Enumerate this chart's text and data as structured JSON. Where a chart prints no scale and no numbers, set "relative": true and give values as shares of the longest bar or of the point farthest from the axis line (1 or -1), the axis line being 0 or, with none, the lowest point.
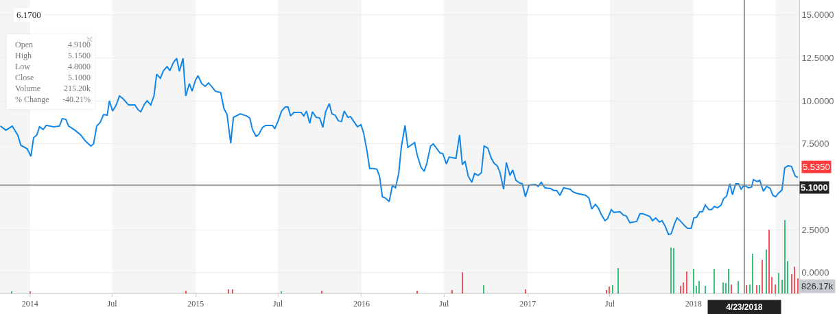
{
  "chart_data": [
    {
      "type": "line",
      "x": [
        "2013-10-28",
        "2013-11-09",
        "2013-11-23",
        "2013-12-05",
        "2013-12-12",
        "2013-12-26",
        "2014-01-03",
        "2014-01-09",
        "2014-01-16",
        "2014-01-22",
        "2014-01-30",
        "2014-02-06",
        "2014-02-22",
        "2014-03-07",
        "2014-03-13",
        "2014-03-21",
        "2014-03-27",
        "2014-04-10",
        "2014-04-23",
        "2014-05-02",
        "2014-05-15",
        "2014-05-21",
        "2014-05-28",
        "2014-06-05",
        "2014-06-12",
        "2014-06-20",
        "2014-06-25",
        "2014-07-02",
        "2014-07-10",
        "2014-07-17",
        "2014-07-25",
        "2014-08-06",
        "2014-08-20",
        "2014-08-27",
        "2014-09-02",
        "2014-09-10",
        "2014-09-16",
        "2014-09-24",
        "2014-10-01",
        "2014-10-07",
        "2014-10-15",
        "2014-10-22",
        "2014-10-30",
        "2014-11-05",
        "2014-11-13",
        "2014-11-20",
        "2014-11-26",
        "2014-12-04",
        "2014-12-10",
        "2014-12-18",
        "2014-12-24",
        "2014-12-31",
        "2015-01-06",
        "2015-01-14",
        "2015-01-22",
        "2015-01-29",
        "2015-02-06",
        "2015-02-13",
        "2015-02-25",
        "2015-03-04",
        "2015-03-11",
        "2015-03-19",
        "2015-03-25",
        "2015-04-09",
        "2015-04-23",
        "2015-04-30",
        "2015-05-06",
        "2015-05-14",
        "2015-05-20",
        "2015-05-28",
        "2015-06-04",
        "2015-06-19",
        "2015-06-24",
        "2015-07-01",
        "2015-07-09",
        "2015-07-17",
        "2015-07-23",
        "2015-07-29",
        "2015-08-05",
        "2015-08-21",
        "2015-08-27",
        "2015-09-02",
        "2015-09-09",
        "2015-09-15",
        "2015-09-23",
        "2015-10-01",
        "2015-10-08",
        "2015-10-14",
        "2015-10-22",
        "2015-10-28",
        "2015-11-04",
        "2015-11-11",
        "2015-11-18",
        "2015-11-24",
        "2015-12-02",
        "2015-12-08",
        "2015-12-15",
        "2015-12-23",
        "2015-12-31",
        "2016-01-06",
        "2016-01-13",
        "2016-01-19",
        "2016-01-27",
        "2016-02-04",
        "2016-02-10",
        "2016-02-16",
        "2016-02-23",
        "2016-03-02",
        "2016-03-09",
        "2016-03-16",
        "2016-03-23",
        "2016-03-29",
        "2016-04-06",
        "2016-04-12",
        "2016-04-27",
        "2016-05-03",
        "2016-05-11",
        "2016-05-18",
        "2016-05-24",
        "2016-06-01",
        "2016-06-07",
        "2016-06-22",
        "2016-06-28",
        "2016-07-06",
        "2016-07-12",
        "2016-07-27",
        "2016-08-04",
        "2016-08-10",
        "2016-08-16",
        "2016-08-23",
        "2016-08-31",
        "2016-09-06",
        "2016-09-14",
        "2016-09-21",
        "2016-09-27",
        "2016-10-05",
        "2016-10-13",
        "2016-10-19",
        "2016-10-26",
        "2016-11-01",
        "2016-11-09",
        "2016-11-15",
        "2016-11-23",
        "2016-11-29",
        "2016-12-06",
        "2016-12-14",
        "2016-12-20",
        "2016-12-27",
        "2017-01-04",
        "2017-01-18",
        "2017-01-24",
        "2017-01-31",
        "2017-02-08",
        "2017-02-20",
        "2017-02-28",
        "2017-03-06",
        "2017-03-13",
        "2017-03-21",
        "2017-04-04",
        "2017-04-11",
        "2017-04-19",
        "2017-05-09",
        "2017-05-16",
        "2017-05-22",
        "2017-05-30",
        "2017-06-06",
        "2017-06-12",
        "2017-06-20",
        "2017-06-26",
        "2017-07-04",
        "2017-07-10",
        "2017-07-23",
        "2017-07-31",
        "2017-08-06",
        "2017-08-14",
        "2017-08-29",
        "2017-09-05",
        "2017-09-12",
        "2017-09-27",
        "2017-10-03",
        "2017-10-10",
        "2017-10-18",
        "2017-10-24",
        "2017-10-30",
        "2017-11-07",
        "2017-11-13",
        "2017-11-20",
        "2017-11-26",
        "2017-12-04",
        "2017-12-12",
        "2017-12-19",
        "2017-12-27",
        "2018-01-02",
        "2018-01-08",
        "2018-01-15",
        "2018-01-21",
        "2018-01-27",
        "2018-02-04",
        "2018-02-10",
        "2018-02-16",
        "2018-02-23",
        "2018-03-03",
        "2018-03-08",
        "2018-03-15",
        "2018-03-22",
        "2018-03-28",
        "2018-04-04",
        "2018-04-10",
        "2018-04-16",
        "2018-04-23",
        "2018-05-02",
        "2018-05-09",
        "2018-05-13",
        "2018-05-21",
        "2018-05-27",
        "2018-06-04",
        "2018-06-11",
        "2018-06-19",
        "2018-06-25",
        "2018-07-01",
        "2018-07-07",
        "2018-07-15",
        "2018-07-21",
        "2018-07-28",
        "2018-08-05",
        "2018-08-13",
        "2018-08-19"
      ],
      "series": [
        {
          "color": "#1086e8",
          "values": [
            8.53,
            8.29,
            8.53,
            8.01,
            7.41,
            7.21,
            6.77,
            7.85,
            8.01,
            8.49,
            8.33,
            8.57,
            8.49,
            8.53,
            8.96,
            8.92,
            8.53,
            8.29,
            8.01,
            7.69,
            7.37,
            7.49,
            8.53,
            8.76,
            9.2,
            9.16,
            10.0,
            9.4,
            9.76,
            10.28,
            10.12,
            9.76,
            9.76,
            9.48,
            9.36,
            9.8,
            10.0,
            9.76,
            10.28,
            11.55,
            11.31,
            11.75,
            11.99,
            11.75,
            12.23,
            12.47,
            11.71,
            12.47,
            10.28,
            11.0,
            10.56,
            11.16,
            11.47,
            11.0,
            10.84,
            11.04,
            10.8,
            10.56,
            10.48,
            9.56,
            9.2,
            7.53,
            9.04,
            9.24,
            9.12,
            9.0,
            8.33,
            7.93,
            8.05,
            8.45,
            8.57,
            8.57,
            8.37,
            8.8,
            9.4,
            9.64,
            9.64,
            9.12,
            9.32,
            9.32,
            9.12,
            9.4,
            8.69,
            9.36,
            9.04,
            9.0,
            8.45,
            9.36,
            9.84,
            9.24,
            9.16,
            8.84,
            8.8,
            9.4,
            9.04,
            9.08,
            8.8,
            8.49,
            8.61,
            8.09,
            7.09,
            6.06,
            6.06,
            6.02,
            5.58,
            4.42,
            4.34,
            4.14,
            5.06,
            4.94,
            5.78,
            7.37,
            8.57,
            7.29,
            7.57,
            6.81,
            6.14,
            5.9,
            6.37,
            7.37,
            7.49,
            6.97,
            6.93,
            6.33,
            6.73,
            6.65,
            8.01,
            6.29,
            6.49,
            5.62,
            5.26,
            5.78,
            5.66,
            5.82,
            7.37,
            7.25,
            6.65,
            6.37,
            6.22,
            5.82,
            4.86,
            6.41,
            5.66,
            5.98,
            5.38,
            5.22,
            5.18,
            4.42,
            5.1,
            5.14,
            5.02,
            5.26,
            4.94,
            4.9,
            4.78,
            4.78,
            4.5,
            4.94,
            4.86,
            4.7,
            4.62,
            4.5,
            4.34,
            3.71,
            3.98,
            3.75,
            3.39,
            3.03,
            3.15,
            3.67,
            3.51,
            3.55,
            3.35,
            3.31,
            2.91,
            2.99,
            3.43,
            3.43,
            3.27,
            3.03,
            3.19,
            2.95,
            3.03,
            2.75,
            2.23,
            2.27,
            2.83,
            3.19,
            2.99,
            2.75,
            2.59,
            2.59,
            3.19,
            3.23,
            3.55,
            3.55,
            3.94,
            3.67,
            3.67,
            3.86,
            3.78,
            3.94,
            4.3,
            4.46,
            5.18,
            4.54,
            5.18,
            5.18,
            4.86,
            5.1,
            4.94,
            4.98,
            5.42,
            5.3,
            5.38,
            4.74,
            5.02,
            4.9,
            4.5,
            4.42,
            4.62,
            4.82,
            6.1,
            6.22,
            6.18,
            5.62,
            5.54
          ]
        }
      ],
      "xlim": [
        "2013-10-27",
        "2018-08-22"
      ],
      "xticks": [
        {
          "value": "2014-01-01",
          "label": "2014"
        },
        {
          "value": "2014-07-01",
          "label": "Jul"
        },
        {
          "value": "2015-01-01",
          "label": "2015"
        },
        {
          "value": "2015-07-01",
          "label": "Jul"
        },
        {
          "value": "2016-01-01",
          "label": "2016"
        },
        {
          "value": "2016-07-01",
          "label": "Jul"
        },
        {
          "value": "2017-01-01",
          "label": "2017"
        },
        {
          "value": "2017-07-01",
          "label": "Jul"
        },
        {
          "value": "2018-01-01",
          "label": "2018"
        },
        {
          "value": "2018-07-01",
          "label": null
        }
      ],
      "ylim": [
        -1.2,
        15.86
      ],
      "yticks": [
        {
          "value": 0,
          "label": "0.0000"
        },
        {
          "value": 2.5,
          "label": "2.5000"
        },
        {
          "value": 5,
          "label": null
        },
        {
          "value": 7.5,
          "label": "7.5000"
        },
        {
          "value": 10,
          "label": "10.0000"
        },
        {
          "value": 12.5,
          "label": "12.5000"
        },
        {
          "value": 15,
          "label": "15.0000"
        }
      ],
      "grid": "y",
      "marker": "none",
      "line_style": "solid",
      "bands": [
        {
          "axis": "x",
          "from": "2013-10-27",
          "to": "2014-01-01",
          "color": "#f5f5f5"
        },
        {
          "axis": "x",
          "from": "2014-07-01",
          "to": "2015-01-01",
          "color": "#f5f5f5"
        },
        {
          "axis": "x",
          "from": "2015-07-01",
          "to": "2016-01-01",
          "color": "#f5f5f5"
        },
        {
          "axis": "x",
          "from": "2016-07-01",
          "to": "2017-01-01",
          "color": "#f5f5f5"
        },
        {
          "axis": "x",
          "from": "2017-07-01",
          "to": "2018-01-01",
          "color": "#f5f5f5"
        },
        {
          "axis": "x",
          "from": "2018-07-01",
          "to": "2018-08-22",
          "color": "#f5f5f5"
        }
      ],
      "ref_lines": [
        {
          "axis": "x",
          "value": "2018-04-23",
          "label": "4/23/2018",
          "color": "#333333"
        },
        {
          "axis": "y",
          "value": 5.1,
          "label": "5.1000",
          "color": "#888888"
        }
      ],
      "annotations": [
        "6.1700",
        "Open",
        "4.9100",
        "High",
        "5.1500",
        "Low",
        "4.8000",
        "Close",
        "5.1000",
        "Volume",
        "215.20k",
        "% Change",
        "-40.21%",
        {
          "text": "5.5350",
          "x": "2018-08-19",
          "y": 5.54
        }
      ]
    },
    {
      "type": "bar",
      "relative": true,
      "x": [
        "2013-11-21",
        "2014-01-01",
        "2014-12-10",
        "2015-03-14",
        "2015-03-23",
        "2015-07-08",
        "2015-10-05",
        "2016-05-02",
        "2016-07-18",
        "2016-08-10",
        "2016-09-26",
        "2016-12-27",
        "2017-06-23",
        "2017-06-29",
        "2017-07-07",
        "2017-07-19",
        "2017-11-13",
        "2017-11-19",
        "2017-12-04",
        "2017-12-10",
        "2017-12-18",
        "2018-01-02",
        "2018-01-08",
        "2018-01-13",
        "2018-01-27",
        "2018-02-16",
        "2018-03-08",
        "2018-03-14",
        "2018-03-20",
        "2018-03-26",
        "2018-04-10",
        "2018-04-28",
        "2018-05-06",
        "2018-05-12",
        "2018-05-21",
        "2018-05-26",
        "2018-06-02",
        "2018-06-11",
        "2018-06-16",
        "2018-06-23",
        "2018-06-30",
        "2018-07-07",
        "2018-07-15",
        "2018-07-21",
        "2018-07-28",
        "2018-08-05",
        "2018-08-11",
        "2018-08-19"
      ],
      "series": [
        {
          "values": [
            0.03,
            0.03,
            0.04,
            0.06,
            0.06,
            0.03,
            0.04,
            0.04,
            0.05,
            0.29,
            0.11,
            0.06,
            0.05,
            0.09,
            0.11,
            0.35,
            0.63,
            0.62,
            0.1,
            0.15,
            0.3,
            0.34,
            0.1,
            0.17,
            0.1,
            0.34,
            0.15,
            0.14,
            0.34,
            0.12,
            0.17,
            0.11,
            0.12,
            0.54,
            0.11,
            0.11,
            0.46,
            0.6,
            0.87,
            0.22,
            0.12,
            0.28,
            0.19,
            1.0,
            0.44,
            0.26,
            0.36,
            0.21
          ],
          "colors": [
            "#3cbe7c",
            "#f4545b",
            "#f4545b",
            "#f4545b",
            "#f4545b",
            "#3cbe7c",
            "#f4545b",
            "#f4545b",
            "#f4545b",
            "#f4545b",
            "#3cbe7c",
            "#f4545b",
            "#f4545b",
            "#f4545b",
            "#3cbe7c",
            "#3cbe7c",
            "#3cbe7c",
            "#3cbe7c",
            "#f4545b",
            "#f4545b",
            "#f4545b",
            "#3cbe7c",
            "#3cbe7c",
            "#3cbe7c",
            "#3cbe7c",
            "#3cbe7c",
            "#3cbe7c",
            "#3cbe7c",
            "#3cbe7c",
            "#f4545b",
            "#3cbe7c",
            "#f4545b",
            "#3cbe7c",
            "#3cbe7c",
            "#f4545b",
            "#3cbe7c",
            "#f4545b",
            "#3cbe7c",
            "#f4545b",
            "#f4545b",
            "#f4545b",
            "#3cbe7c",
            "#3cbe7c",
            "#3cbe7c",
            "#3cbe7c",
            "#f4545b",
            "#f4545b",
            "#f4545b"
          ]
        }
      ],
      "xlim": [
        "2013-10-27",
        "2018-08-22"
      ],
      "annotations": [
        "826.17k"
      ]
    }
  ]
}
